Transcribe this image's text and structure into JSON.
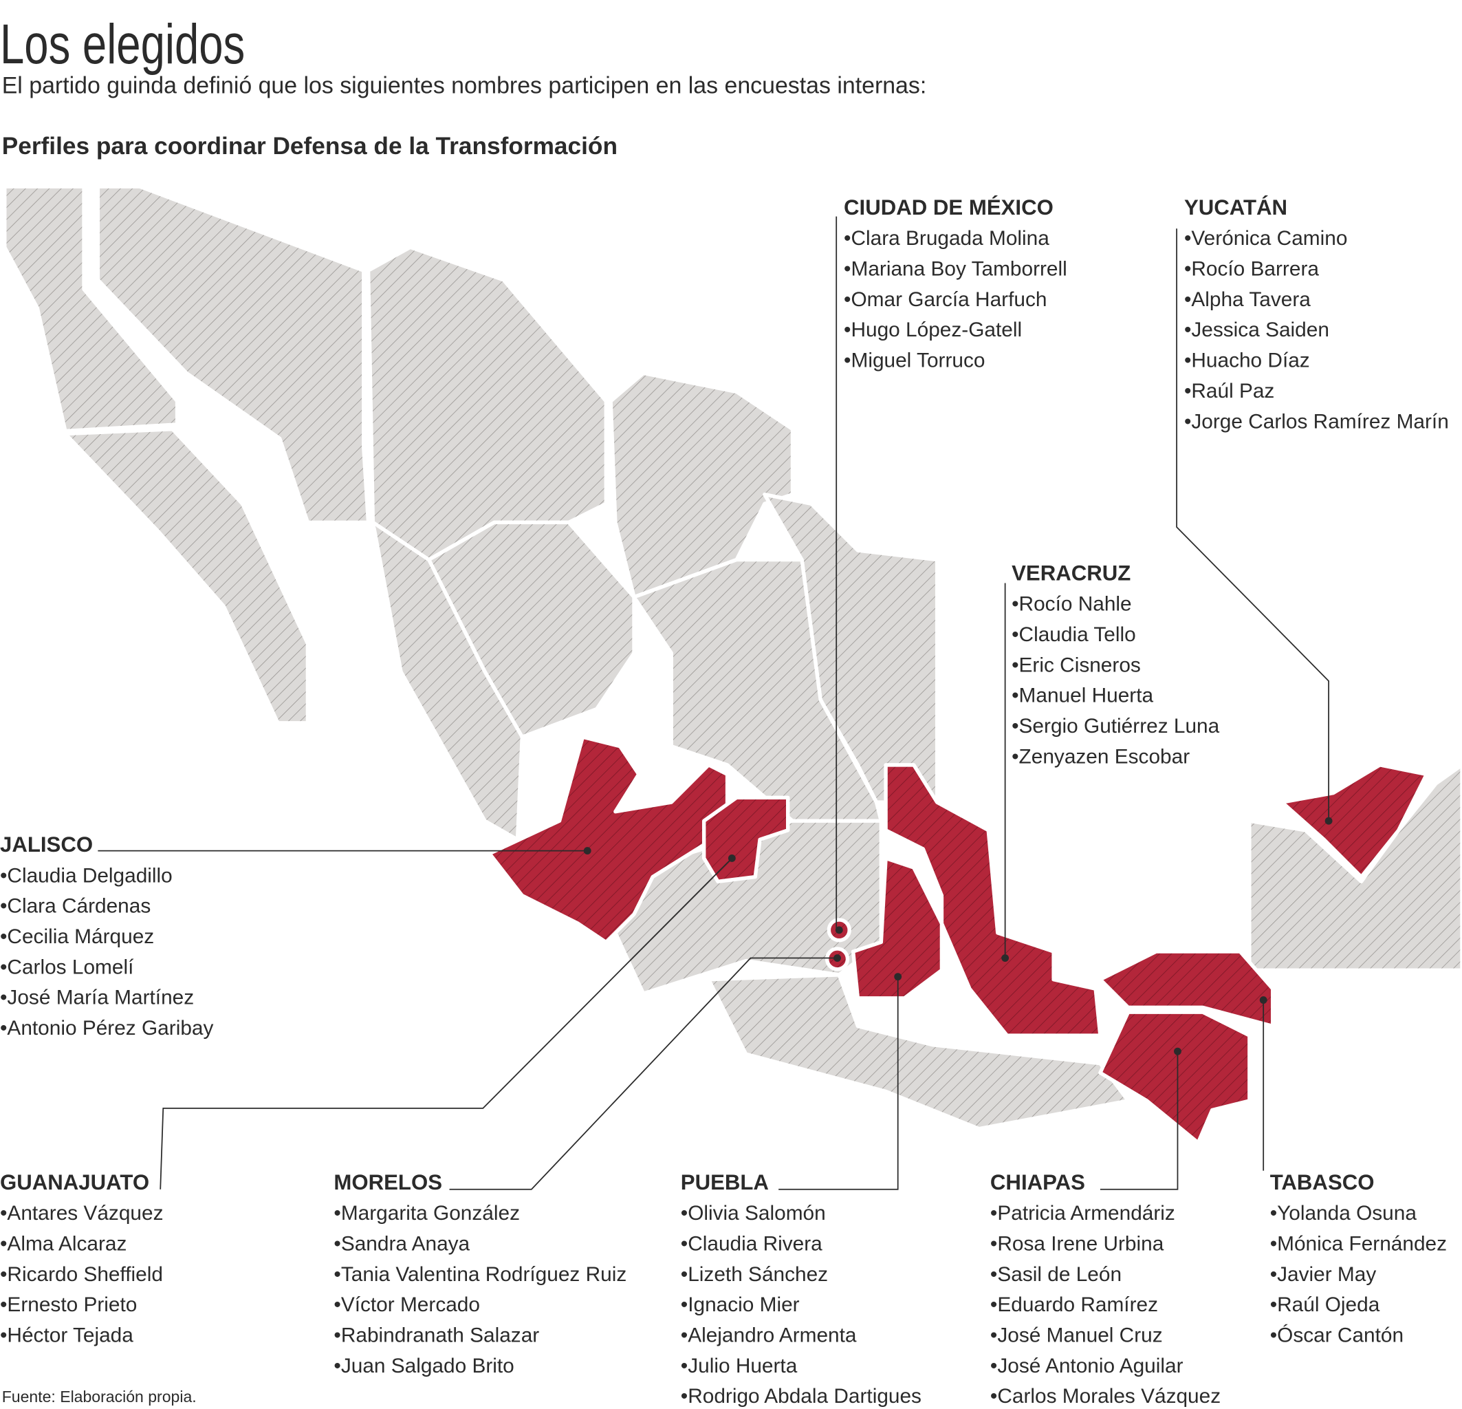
{
  "header": {
    "title": "Los elegidos",
    "subtitle": "El partido guinda definió que los siguientes nombres participen en las encuestas internas:",
    "section_title": "Perfiles para coordinar Defensa de la Transformación"
  },
  "states": [
    {
      "name": "CIUDAD DE MÉXICO",
      "people": [
        "•Clara Brugada Molina",
        "•Mariana Boy Tamborrell",
        "•Omar García Harfuch",
        "•Hugo López-Gatell",
        "•Miguel Torruco"
      ]
    },
    {
      "name": "YUCATÁN",
      "people": [
        "•Verónica Camino",
        "•Rocío Barrera",
        "•Alpha Tavera",
        "•Jessica Saiden",
        "•Huacho Díaz",
        "•Raúl Paz",
        "•Jorge Carlos Ramírez Marín"
      ]
    },
    {
      "name": "VERACRUZ",
      "people": [
        "•Rocío Nahle",
        "•Claudia Tello",
        "•Eric Cisneros",
        "•Manuel Huerta",
        "•Sergio Gutiérrez Luna",
        "•Zenyazen Escobar"
      ]
    },
    {
      "name": "JALISCO",
      "people": [
        "•Claudia Delgadillo",
        "•Clara Cárdenas",
        "•Cecilia Márquez",
        "•Carlos Lomelí",
        "•José María Martínez",
        "•Antonio Pérez Garibay"
      ]
    },
    {
      "name": "GUANAJUATO",
      "people": [
        "•Antares Vázquez",
        "•Alma Alcaraz",
        "•Ricardo Sheffield",
        "•Ernesto Prieto",
        "•Héctor Tejada"
      ]
    },
    {
      "name": "MORELOS",
      "people": [
        "•Margarita González",
        "•Sandra Anaya",
        "•Tania Valentina Rodríguez Ruiz",
        "•Víctor Mercado",
        "•Rabindranath Salazar",
        "•Juan Salgado Brito"
      ]
    },
    {
      "name": "PUEBLA",
      "people": [
        "•Olivia Salomón",
        "•Claudia Rivera",
        "•Lizeth Sánchez",
        "•Ignacio Mier",
        "•Alejandro Armenta",
        "•Julio Huerta",
        "•Rodrigo Abdala Dartigues"
      ]
    },
    {
      "name": "CHIAPAS",
      "people": [
        "•Patricia Armendáriz",
        "•Rosa Irene Urbina",
        "•Sasil de León",
        "•Eduardo Ramírez",
        "•José Manuel Cruz",
        "•José Antonio Aguilar",
        "•Carlos Morales Vázquez"
      ]
    },
    {
      "name": "TABASCO",
      "people": [
        "•Yolanda Osuna",
        "•Mónica Fernández",
        "•Javier May",
        "•Raúl Ojeda",
        "•Óscar Cantón"
      ]
    }
  ],
  "source": "Fuente: Elaboración propia."
}
